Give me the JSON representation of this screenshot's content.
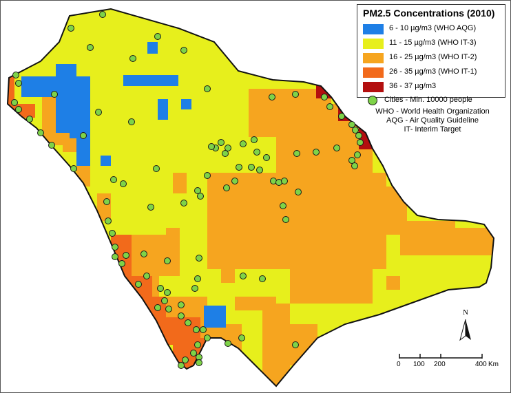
{
  "legend": {
    "title": "PM2.5 Concentrations (2010)",
    "classes": [
      {
        "label": "6 - 10 µg/m3 (WHO AQG)",
        "color": "#1e7fe6"
      },
      {
        "label": "11 - 15 µg/m3 (WHO IT-3)",
        "color": "#e7ef1c"
      },
      {
        "label": "16 - 25 µg/m3 (WHO IT-2)",
        "color": "#f6a51f"
      },
      {
        "label": "26 - 35 µg/m3 (WHO IT-1)",
        "color": "#f26a1b"
      },
      {
        "label": "36 - 37 µg/m3",
        "color": "#b30f0f"
      }
    ],
    "cities_label": "Cities - Min. 10000 people",
    "city_color": "#7ed348"
  },
  "abbreviations": [
    "WHO - World Health Organization",
    "AQG - Air Quality Guideline",
    "IT- Interim Target"
  ],
  "north_arrow": {
    "label": "N"
  },
  "scale_bar": {
    "ticks": [
      "0",
      "100",
      "200",
      "400"
    ],
    "unit": "Km"
  }
}
